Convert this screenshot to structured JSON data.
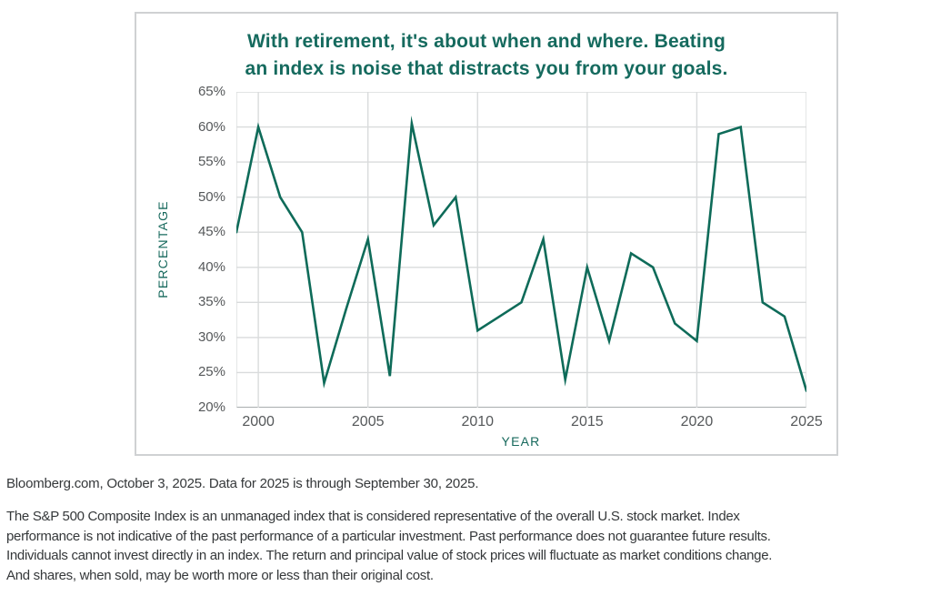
{
  "chart_card": {
    "title_lines": [
      "With retirement, it's about when and where. Beating",
      "an index is noise that distracts you from your goals."
    ],
    "x_axis_label": "YEAR",
    "y_axis_label": "PERCENTAGE"
  },
  "chart_data": {
    "type": "line",
    "title": "With retirement, it's about when and where. Beating an index is noise that distracts you from your goals.",
    "xlabel": "YEAR",
    "ylabel": "PERCENTAGE",
    "x": [
      1999,
      2000,
      2001,
      2002,
      2003,
      2004,
      2005,
      2006,
      2007,
      2008,
      2009,
      2010,
      2011,
      2012,
      2013,
      2014,
      2015,
      2016,
      2017,
      2018,
      2019,
      2020,
      2021,
      2022,
      2023,
      2024,
      2025
    ],
    "values": [
      45,
      60,
      50,
      45,
      23.5,
      34,
      44,
      24.5,
      60.5,
      46,
      50,
      31,
      33,
      35,
      44,
      24,
      40,
      29.5,
      42,
      40,
      32,
      29.5,
      59,
      60,
      35,
      33,
      22.4
    ],
    "xlim": [
      1999,
      2025
    ],
    "ylim": [
      20,
      65
    ],
    "x_ticks": [
      2000,
      2005,
      2010,
      2015,
      2020,
      2025
    ],
    "y_ticks": [
      65,
      60,
      55,
      50,
      45,
      40,
      35,
      30,
      25,
      20
    ],
    "y_tick_suffix": "%",
    "grid": true,
    "legend": "none",
    "line_color": "#0e6b59",
    "grid_color": "#d9dbdc",
    "axis_color": "#a9adaf"
  },
  "footer": {
    "source_line": "Bloomberg.com, October 3, 2025. Data for 2025 is through September 30, 2025.",
    "disclaimer_lines": [
      "The S&P 500 Composite Index is an unmanaged index that is considered representative of the overall U.S. stock market. Index",
      "performance is not indicative of the past performance of a particular investment. Past performance does not guarantee future results.",
      "Individuals cannot invest directly in an index. The return and principal value of stock prices will fluctuate as market conditions change.",
      "And shares, when sold, may be worth more or less than their original cost."
    ]
  },
  "colors": {
    "accent_teal": "#156a5e",
    "tick_gray": "#55585a",
    "body_text": "#35383a",
    "card_border": "#cfd1d3"
  }
}
